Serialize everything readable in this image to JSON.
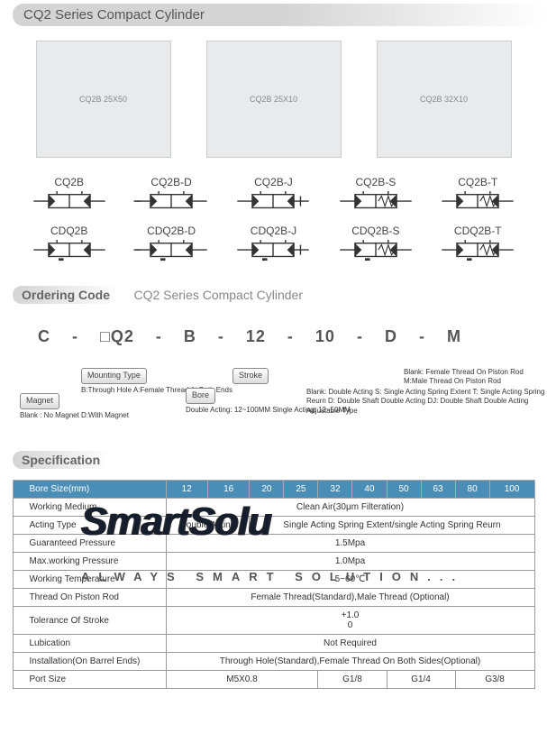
{
  "header": {
    "title": "CQ2 Series Compact  Cylinder"
  },
  "symbols_row1": [
    {
      "label": "CQ2B"
    },
    {
      "label": "CQ2B-D"
    },
    {
      "label": "CQ2B-J"
    },
    {
      "label": "CQ2B-S"
    },
    {
      "label": "CQ2B-T"
    }
  ],
  "symbols_row2": [
    {
      "label": "CDQ2B"
    },
    {
      "label": "CDQ2B-D"
    },
    {
      "label": "CDQ2B-J"
    },
    {
      "label": "CDQ2B-S"
    },
    {
      "label": "CDQ2B-T"
    }
  ],
  "ordering": {
    "label": "Ordering Code",
    "subtitle": "CQ2  Series Compact  Cylinder",
    "code": [
      "C",
      "-",
      "□Q2",
      "-",
      "B",
      "-",
      "12",
      "-",
      "10",
      "-",
      "D",
      "-",
      "M"
    ]
  },
  "tags": {
    "magnet": {
      "name": "Magnet",
      "desc": "Blank : No Magnet\nD:With Magnet"
    },
    "mounting": {
      "name": "Mounting Type",
      "desc": "B:Through Hole\nA:Female Thread At Both Ends"
    },
    "bore": {
      "name": "Bore",
      "desc": "Double Acting: 12~100MM\nSingle Acting: 12~50MM"
    },
    "stroke": {
      "name": "Stroke",
      "desc": ""
    },
    "d": {
      "desc": "Blank: Double Acting\nS: Single Acting Spring Extent\nT: Single Acting Spring Reurn\nD: Double Shaft Double Acting\nDJ: Double Shaft Double Acting Adjustable Type"
    },
    "m": {
      "desc": "Blank: Female Thread On Piston Rod\nM:Male Thread On Piston Rod"
    }
  },
  "watermark": {
    "logo": "SmartSolu",
    "tagline": "ALWAYS SMART SOLUTION..."
  },
  "spec_header": "Specification",
  "spec": {
    "cols": [
      "Bore Size(mm)",
      "12",
      "16",
      "20",
      "25",
      "32",
      "40",
      "50",
      "63",
      "80",
      "100"
    ],
    "rows": [
      {
        "lbl": "Working Medium",
        "val": "Clean Air(30μm Filteration)",
        "span": 10
      },
      {
        "lbl": "Acting Type",
        "vals": [
          {
            "t": "Double Acting",
            "s": 2
          },
          {
            "t": "Single Acting Spring Extent/single Acting Spring Reurn",
            "s": 8
          }
        ]
      },
      {
        "lbl": "Guaranteed Pressure",
        "val": "1.5Mpa",
        "span": 10
      },
      {
        "lbl": "Max.working Pressure",
        "val": "1.0Mpa",
        "span": 10
      },
      {
        "lbl": "Working Temperature",
        "val": "5~60℃",
        "span": 10
      },
      {
        "lbl": "Thread On Piston Rod",
        "val": "Female Thread(Standard),Male Thread (Optional)",
        "span": 10
      },
      {
        "lbl": "Tolerance Of Stroke",
        "val": "+1.0\n0",
        "span": 10
      },
      {
        "lbl": "Lubication",
        "val": "Not Required",
        "span": 10
      },
      {
        "lbl": "Installation(On Barrel Ends)",
        "val": "Through Hole(Standard),Female Thread On Both Sides(Optional)",
        "span": 10
      },
      {
        "lbl": "Port Size",
        "vals": [
          {
            "t": "M5X0.8",
            "s": 4
          },
          {
            "t": "G1/8",
            "s": 2
          },
          {
            "t": "G1/4",
            "s": 2
          },
          {
            "t": "G3/8",
            "s": 2
          }
        ]
      }
    ]
  },
  "colors": {
    "header_blue": "#4a8eb8",
    "border": "#999"
  }
}
